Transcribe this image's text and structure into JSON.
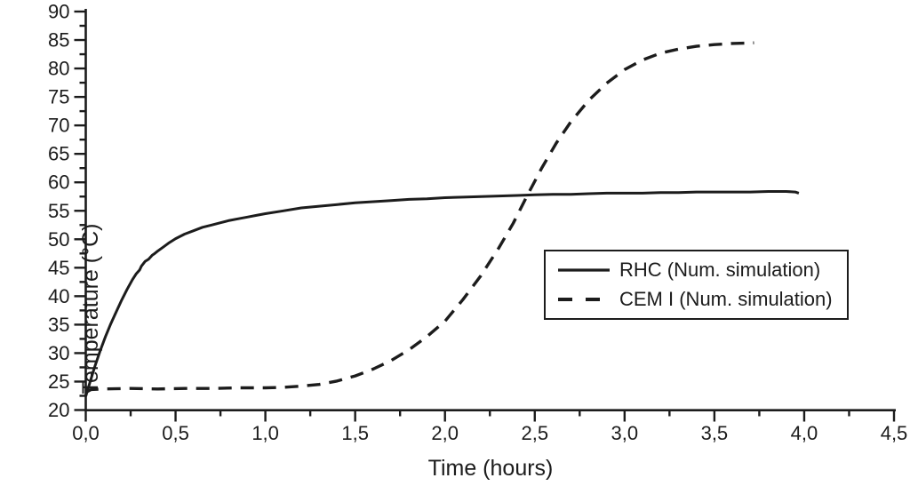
{
  "chart_data": {
    "type": "line",
    "title": "",
    "xlabel": "Time (hours)",
    "ylabel": "Temperature (°C)",
    "background": "#ffffff",
    "axis_color": "#1c1c1c",
    "grid": false,
    "legend_position": "inside-right",
    "x_axis": {
      "min": 0,
      "max": 4.5,
      "major_step": 0.5,
      "minor_step": 0.25,
      "tick_labels": [
        "0,0",
        "0,5",
        "1,0",
        "1,5",
        "2,0",
        "2,5",
        "3,0",
        "3,5",
        "4,0",
        "4,5"
      ]
    },
    "y_axis": {
      "min": 20,
      "max": 90,
      "major_step": 5,
      "minor_step": 2.5,
      "tick_labels": [
        "20",
        "25",
        "30",
        "35",
        "40",
        "45",
        "50",
        "55",
        "60",
        "65",
        "70",
        "75",
        "80",
        "85",
        "90"
      ]
    },
    "series": [
      {
        "name": "RHC (Num. simulation)",
        "line_style": "solid",
        "color": "#1c1c1c",
        "points": [
          [
            0.0,
            22.4
          ],
          [
            0.02,
            24.5
          ],
          [
            0.05,
            27.6
          ],
          [
            0.08,
            30.4
          ],
          [
            0.11,
            32.9
          ],
          [
            0.14,
            35.2
          ],
          [
            0.17,
            37.3
          ],
          [
            0.2,
            39.3
          ],
          [
            0.23,
            41.2
          ],
          [
            0.26,
            42.9
          ],
          [
            0.28,
            43.9
          ],
          [
            0.3,
            44.6
          ],
          [
            0.31,
            45.3
          ],
          [
            0.33,
            46.1
          ],
          [
            0.35,
            46.5
          ],
          [
            0.37,
            47.2
          ],
          [
            0.38,
            47.4
          ],
          [
            0.4,
            47.9
          ],
          [
            0.43,
            48.6
          ],
          [
            0.46,
            49.3
          ],
          [
            0.5,
            50.1
          ],
          [
            0.55,
            50.9
          ],
          [
            0.6,
            51.5
          ],
          [
            0.65,
            52.1
          ],
          [
            0.7,
            52.5
          ],
          [
            0.75,
            52.9
          ],
          [
            0.8,
            53.3
          ],
          [
            0.85,
            53.6
          ],
          [
            0.9,
            53.9
          ],
          [
            0.95,
            54.2
          ],
          [
            1.0,
            54.5
          ],
          [
            1.1,
            55.0
          ],
          [
            1.2,
            55.5
          ],
          [
            1.3,
            55.8
          ],
          [
            1.4,
            56.1
          ],
          [
            1.5,
            56.4
          ],
          [
            1.6,
            56.6
          ],
          [
            1.7,
            56.8
          ],
          [
            1.8,
            57.0
          ],
          [
            1.9,
            57.1
          ],
          [
            2.0,
            57.3
          ],
          [
            2.1,
            57.4
          ],
          [
            2.2,
            57.5
          ],
          [
            2.3,
            57.6
          ],
          [
            2.4,
            57.7
          ],
          [
            2.5,
            57.8
          ],
          [
            2.6,
            57.9
          ],
          [
            2.7,
            57.9
          ],
          [
            2.8,
            58.0
          ],
          [
            2.9,
            58.1
          ],
          [
            3.0,
            58.1
          ],
          [
            3.1,
            58.1
          ],
          [
            3.2,
            58.2
          ],
          [
            3.3,
            58.2
          ],
          [
            3.4,
            58.3
          ],
          [
            3.5,
            58.3
          ],
          [
            3.6,
            58.3
          ],
          [
            3.7,
            58.3
          ],
          [
            3.8,
            58.4
          ],
          [
            3.9,
            58.4
          ],
          [
            3.95,
            58.3
          ],
          [
            3.97,
            58.1
          ]
        ]
      },
      {
        "name": "CEM I (Num. simulation)",
        "line_style": "dashed",
        "color": "#1c1c1c",
        "points": [
          [
            0.0,
            23.1
          ],
          [
            0.03,
            23.6
          ],
          [
            0.1,
            23.7
          ],
          [
            0.25,
            23.8
          ],
          [
            0.4,
            23.7
          ],
          [
            0.55,
            23.8
          ],
          [
            0.7,
            23.8
          ],
          [
            0.85,
            23.9
          ],
          [
            1.0,
            23.9
          ],
          [
            1.1,
            24.0
          ],
          [
            1.2,
            24.2
          ],
          [
            1.3,
            24.5
          ],
          [
            1.4,
            25.1
          ],
          [
            1.5,
            26.0
          ],
          [
            1.6,
            27.2
          ],
          [
            1.7,
            28.7
          ],
          [
            1.8,
            30.6
          ],
          [
            1.9,
            32.9
          ],
          [
            2.0,
            35.6
          ],
          [
            2.1,
            39.4
          ],
          [
            2.2,
            43.6
          ],
          [
            2.3,
            48.5
          ],
          [
            2.38,
            52.8
          ],
          [
            2.46,
            57.8
          ],
          [
            2.54,
            62.6
          ],
          [
            2.62,
            66.9
          ],
          [
            2.7,
            70.6
          ],
          [
            2.8,
            74.4
          ],
          [
            2.9,
            77.4
          ],
          [
            3.0,
            79.8
          ],
          [
            3.1,
            81.5
          ],
          [
            3.2,
            82.7
          ],
          [
            3.3,
            83.4
          ],
          [
            3.4,
            83.9
          ],
          [
            3.5,
            84.2
          ],
          [
            3.6,
            84.4
          ],
          [
            3.72,
            84.5
          ]
        ]
      }
    ]
  }
}
